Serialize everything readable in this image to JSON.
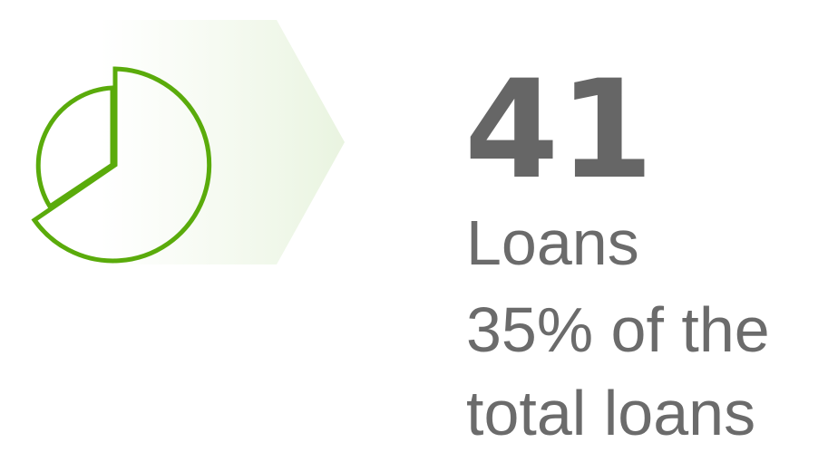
{
  "stat": {
    "value": 41,
    "label": "Loans",
    "description": [
      "35% of the",
      "total loans"
    ]
  }
}
